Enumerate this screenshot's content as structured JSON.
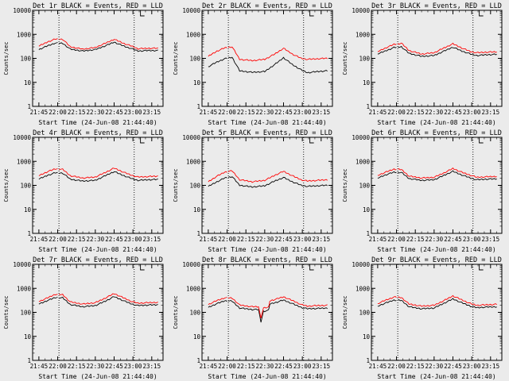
{
  "colors": {
    "events": "#000000",
    "lld": "#ff0000",
    "background": "#ebebeb"
  },
  "chart_data": [
    {
      "type": "line",
      "title": "Det 1r BLACK = Events, RED = LLD",
      "xlabel": "Start Time (24-Jun-08 21:44:40)",
      "ylabel": "Counts/sec",
      "yscale": "log",
      "ylim": [
        1,
        10000
      ],
      "x_ticks": [
        "21:45",
        "22:00",
        "22:15",
        "22:30",
        "22:45",
        "23:00",
        "23:15"
      ],
      "y_ticks": [
        "1",
        "10",
        "100",
        "1000",
        "10000"
      ],
      "x": [
        "21:45",
        "21:52",
        "21:58",
        "22:04",
        "22:10",
        "22:20",
        "22:30",
        "22:38",
        "22:45",
        "22:52",
        "22:59",
        "23:04",
        "23:12",
        "23:20"
      ],
      "series": [
        {
          "name": "Events",
          "color": "#000000",
          "values": [
            230,
            330,
            430,
            420,
            240,
            200,
            230,
            330,
            470,
            330,
            250,
            200,
            210,
            210
          ]
        },
        {
          "name": "LLD",
          "color": "#ff0000",
          "values": [
            320,
            480,
            630,
            620,
            300,
            240,
            280,
            420,
            620,
            430,
            320,
            250,
            260,
            260
          ]
        }
      ],
      "breaks": [
        "22:01"
      ],
      "vlines": [
        "22:01",
        "23:01"
      ],
      "marker": "23:06",
      "grid": false
    },
    {
      "type": "line",
      "title": "Det 2r BLACK = Events, RED = LLD",
      "xlabel": "Start Time (24-Jun-08 21:44:40)",
      "ylabel": "Counts/sec",
      "yscale": "log",
      "ylim": [
        1,
        10000
      ],
      "x_ticks": [
        "21:45",
        "22:00",
        "22:15",
        "22:30",
        "22:45",
        "23:00",
        "23:15"
      ],
      "y_ticks": [
        "1",
        "10",
        "100",
        "1000",
        "10000"
      ],
      "x": [
        "21:45",
        "21:52",
        "21:58",
        "22:04",
        "22:10",
        "22:20",
        "22:30",
        "22:38",
        "22:45",
        "22:52",
        "22:59",
        "23:04",
        "23:12",
        "23:20"
      ],
      "series": [
        {
          "name": "Events",
          "color": "#000000",
          "values": [
            45,
            70,
            95,
            110,
            30,
            26,
            28,
            55,
            105,
            55,
            33,
            25,
            28,
            30
          ]
        },
        {
          "name": "LLD",
          "color": "#ff0000",
          "values": [
            120,
            200,
            270,
            300,
            90,
            80,
            90,
            150,
            260,
            150,
            100,
            90,
            95,
            100
          ]
        }
      ],
      "breaks": [
        "22:01"
      ],
      "vlines": [
        "22:01",
        "23:01"
      ],
      "marker": "23:06",
      "grid": false
    },
    {
      "type": "line",
      "title": "Det 3r BLACK = Events, RED = LLD",
      "xlabel": "Start Time (24-Jun-08 21:44:40)",
      "ylabel": "Counts/sec",
      "yscale": "log",
      "ylim": [
        1,
        10000
      ],
      "x_ticks": [
        "21:45",
        "22:00",
        "22:15",
        "22:30",
        "22:45",
        "23:00",
        "23:15"
      ],
      "y_ticks": [
        "1",
        "10",
        "100",
        "1000",
        "10000"
      ],
      "x": [
        "21:45",
        "21:52",
        "21:58",
        "22:04",
        "22:10",
        "22:20",
        "22:30",
        "22:38",
        "22:45",
        "22:52",
        "22:59",
        "23:04",
        "23:12",
        "23:20"
      ],
      "series": [
        {
          "name": "Events",
          "color": "#000000",
          "values": [
            150,
            210,
            280,
            300,
            160,
            120,
            130,
            200,
            290,
            200,
            150,
            130,
            140,
            145
          ]
        },
        {
          "name": "LLD",
          "color": "#ff0000",
          "values": [
            190,
            280,
            380,
            420,
            210,
            150,
            170,
            270,
            400,
            270,
            190,
            170,
            180,
            185
          ]
        }
      ],
      "breaks": [
        "22:01"
      ],
      "vlines": [
        "22:01",
        "23:01"
      ],
      "marker": "23:06",
      "grid": false
    },
    {
      "type": "line",
      "title": "Det 4r BLACK = Events, RED = LLD",
      "xlabel": "Start Time (24-Jun-08 21:44:40)",
      "ylabel": "Counts/sec",
      "yscale": "log",
      "ylim": [
        1,
        10000
      ],
      "x_ticks": [
        "21:45",
        "22:00",
        "22:15",
        "22:30",
        "22:45",
        "23:00",
        "23:15"
      ],
      "y_ticks": [
        "1",
        "10",
        "100",
        "1000",
        "10000"
      ],
      "x": [
        "21:45",
        "21:52",
        "21:58",
        "22:04",
        "22:10",
        "22:20",
        "22:30",
        "22:38",
        "22:45",
        "22:52",
        "22:59",
        "23:04",
        "23:12",
        "23:20"
      ],
      "series": [
        {
          "name": "Events",
          "color": "#000000",
          "values": [
            180,
            260,
            330,
            320,
            180,
            150,
            160,
            250,
            370,
            260,
            190,
            160,
            170,
            175
          ]
        },
        {
          "name": "LLD",
          "color": "#ff0000",
          "values": [
            250,
            370,
            480,
            460,
            250,
            200,
            220,
            340,
            520,
            360,
            260,
            220,
            230,
            240
          ]
        }
      ],
      "breaks": [
        "22:01"
      ],
      "vlines": [
        "22:01",
        "23:01"
      ],
      "marker": "23:06",
      "grid": false
    },
    {
      "type": "line",
      "title": "Det 5r BLACK = Events, RED = LLD",
      "xlabel": "Start Time (24-Jun-08 21:44:40)",
      "ylabel": "Counts/sec",
      "yscale": "log",
      "ylim": [
        1,
        10000
      ],
      "x_ticks": [
        "21:45",
        "22:00",
        "22:15",
        "22:30",
        "22:45",
        "23:00",
        "23:15"
      ],
      "y_ticks": [
        "1",
        "10",
        "100",
        "1000",
        "10000"
      ],
      "x": [
        "21:45",
        "21:52",
        "21:58",
        "22:04",
        "22:10",
        "22:20",
        "22:30",
        "22:38",
        "22:45",
        "22:52",
        "22:59",
        "23:04",
        "23:12",
        "23:20"
      ],
      "series": [
        {
          "name": "Events",
          "color": "#000000",
          "values": [
            90,
            140,
            200,
            230,
            100,
            85,
            95,
            150,
            210,
            140,
            100,
            90,
            95,
            100
          ]
        },
        {
          "name": "LLD",
          "color": "#ff0000",
          "values": [
            140,
            240,
            350,
            400,
            170,
            140,
            160,
            260,
            380,
            250,
            170,
            150,
            160,
            170
          ]
        }
      ],
      "breaks": [
        "22:01"
      ],
      "vlines": [
        "22:01",
        "23:01"
      ],
      "marker": "23:06",
      "grid": false
    },
    {
      "type": "line",
      "title": "Det 6r BLACK = Events, RED = LLD",
      "xlabel": "Start Time (24-Jun-08 21:44:40)",
      "ylabel": "Counts/sec",
      "yscale": "log",
      "ylim": [
        1,
        10000
      ],
      "x_ticks": [
        "21:45",
        "22:00",
        "22:15",
        "22:30",
        "22:45",
        "23:00",
        "23:15"
      ],
      "y_ticks": [
        "1",
        "10",
        "100",
        "1000",
        "10000"
      ],
      "x": [
        "21:45",
        "21:52",
        "21:58",
        "22:04",
        "22:10",
        "22:20",
        "22:30",
        "22:38",
        "22:45",
        "22:52",
        "22:59",
        "23:04",
        "23:12",
        "23:20"
      ],
      "series": [
        {
          "name": "Events",
          "color": "#000000",
          "values": [
            200,
            280,
            350,
            340,
            190,
            160,
            170,
            260,
            380,
            270,
            200,
            170,
            180,
            185
          ]
        },
        {
          "name": "LLD",
          "color": "#ff0000",
          "values": [
            260,
            360,
            470,
            450,
            240,
            200,
            215,
            330,
            500,
            350,
            260,
            215,
            225,
            235
          ]
        }
      ],
      "breaks": [
        "22:01"
      ],
      "vlines": [
        "22:01",
        "23:01"
      ],
      "marker": "23:06",
      "grid": false
    },
    {
      "type": "line",
      "title": "Det 7r BLACK = Events, RED = LLD",
      "xlabel": "Start Time (24-Jun-08 21:44:40)",
      "ylabel": "Counts/sec",
      "yscale": "log",
      "ylim": [
        1,
        10000
      ],
      "x_ticks": [
        "21:45",
        "22:00",
        "22:15",
        "22:30",
        "22:45",
        "23:00",
        "23:15"
      ],
      "y_ticks": [
        "1",
        "10",
        "100",
        "1000",
        "10000"
      ],
      "x": [
        "21:45",
        "21:52",
        "21:58",
        "22:04",
        "22:10",
        "22:20",
        "22:30",
        "22:38",
        "22:45",
        "22:52",
        "22:59",
        "23:04",
        "23:12",
        "23:20"
      ],
      "series": [
        {
          "name": "Events",
          "color": "#000000",
          "values": [
            220,
            310,
            410,
            400,
            210,
            170,
            190,
            290,
            450,
            310,
            220,
            190,
            200,
            205
          ]
        },
        {
          "name": "LLD",
          "color": "#ff0000",
          "values": [
            280,
            400,
            560,
            540,
            270,
            220,
            250,
            390,
            600,
            410,
            280,
            240,
            250,
            260
          ]
        }
      ],
      "breaks": [
        "22:01"
      ],
      "vlines": [
        "22:01",
        "23:01"
      ],
      "marker": "23:06",
      "grid": false
    },
    {
      "type": "line",
      "title": "Det 8r BLACK = Events, RED = LLD",
      "xlabel": "Start Time (24-Jun-08 21:44:40)",
      "ylabel": "Counts/sec",
      "yscale": "log",
      "ylim": [
        1,
        10000
      ],
      "x_ticks": [
        "21:45",
        "22:00",
        "22:15",
        "22:30",
        "22:45",
        "23:00",
        "23:15"
      ],
      "y_ticks": [
        "1",
        "10",
        "100",
        "1000",
        "10000"
      ],
      "x": [
        "21:45",
        "21:52",
        "21:58",
        "22:04",
        "22:10",
        "22:20",
        "22:25",
        "22:27",
        "22:29",
        "22:33",
        "22:34",
        "22:38",
        "22:45",
        "22:52",
        "22:59",
        "23:04",
        "23:12",
        "23:20"
      ],
      "series": [
        {
          "name": "Events",
          "color": "#000000",
          "values": [
            160,
            230,
            300,
            290,
            150,
            130,
            130,
            40,
            110,
            120,
            220,
            250,
            320,
            230,
            160,
            140,
            145,
            150
          ]
        },
        {
          "name": "LLD",
          "color": "#ff0000",
          "values": [
            210,
            310,
            400,
            390,
            200,
            170,
            170,
            60,
            150,
            160,
            300,
            340,
            440,
            310,
            210,
            180,
            190,
            195
          ]
        }
      ],
      "breaks": [
        "22:01"
      ],
      "vlines": [
        "22:01",
        "23:01"
      ],
      "marker": "23:06",
      "grid": false
    },
    {
      "type": "line",
      "title": "Det 9r BLACK = Events, RED = LLD",
      "xlabel": "Start Time (24-Jun-08 21:44:40)",
      "ylabel": "Counts/sec",
      "yscale": "log",
      "ylim": [
        1,
        10000
      ],
      "x_ticks": [
        "21:45",
        "22:00",
        "22:15",
        "22:30",
        "22:45",
        "23:00",
        "23:15"
      ],
      "y_ticks": [
        "1",
        "10",
        "100",
        "1000",
        "10000"
      ],
      "x": [
        "21:45",
        "21:52",
        "21:58",
        "22:04",
        "22:10",
        "22:20",
        "22:30",
        "22:38",
        "22:45",
        "22:52",
        "22:59",
        "23:04",
        "23:12",
        "23:20"
      ],
      "series": [
        {
          "name": "Events",
          "color": "#000000",
          "values": [
            180,
            250,
            320,
            310,
            170,
            140,
            150,
            240,
            360,
            250,
            180,
            155,
            165,
            170
          ]
        },
        {
          "name": "LLD",
          "color": "#ff0000",
          "values": [
            230,
            330,
            430,
            410,
            220,
            180,
            195,
            310,
            480,
            330,
            230,
            195,
            205,
            215
          ]
        }
      ],
      "breaks": [
        "22:01"
      ],
      "vlines": [
        "22:01",
        "23:01"
      ],
      "marker": "23:06",
      "grid": false
    }
  ]
}
